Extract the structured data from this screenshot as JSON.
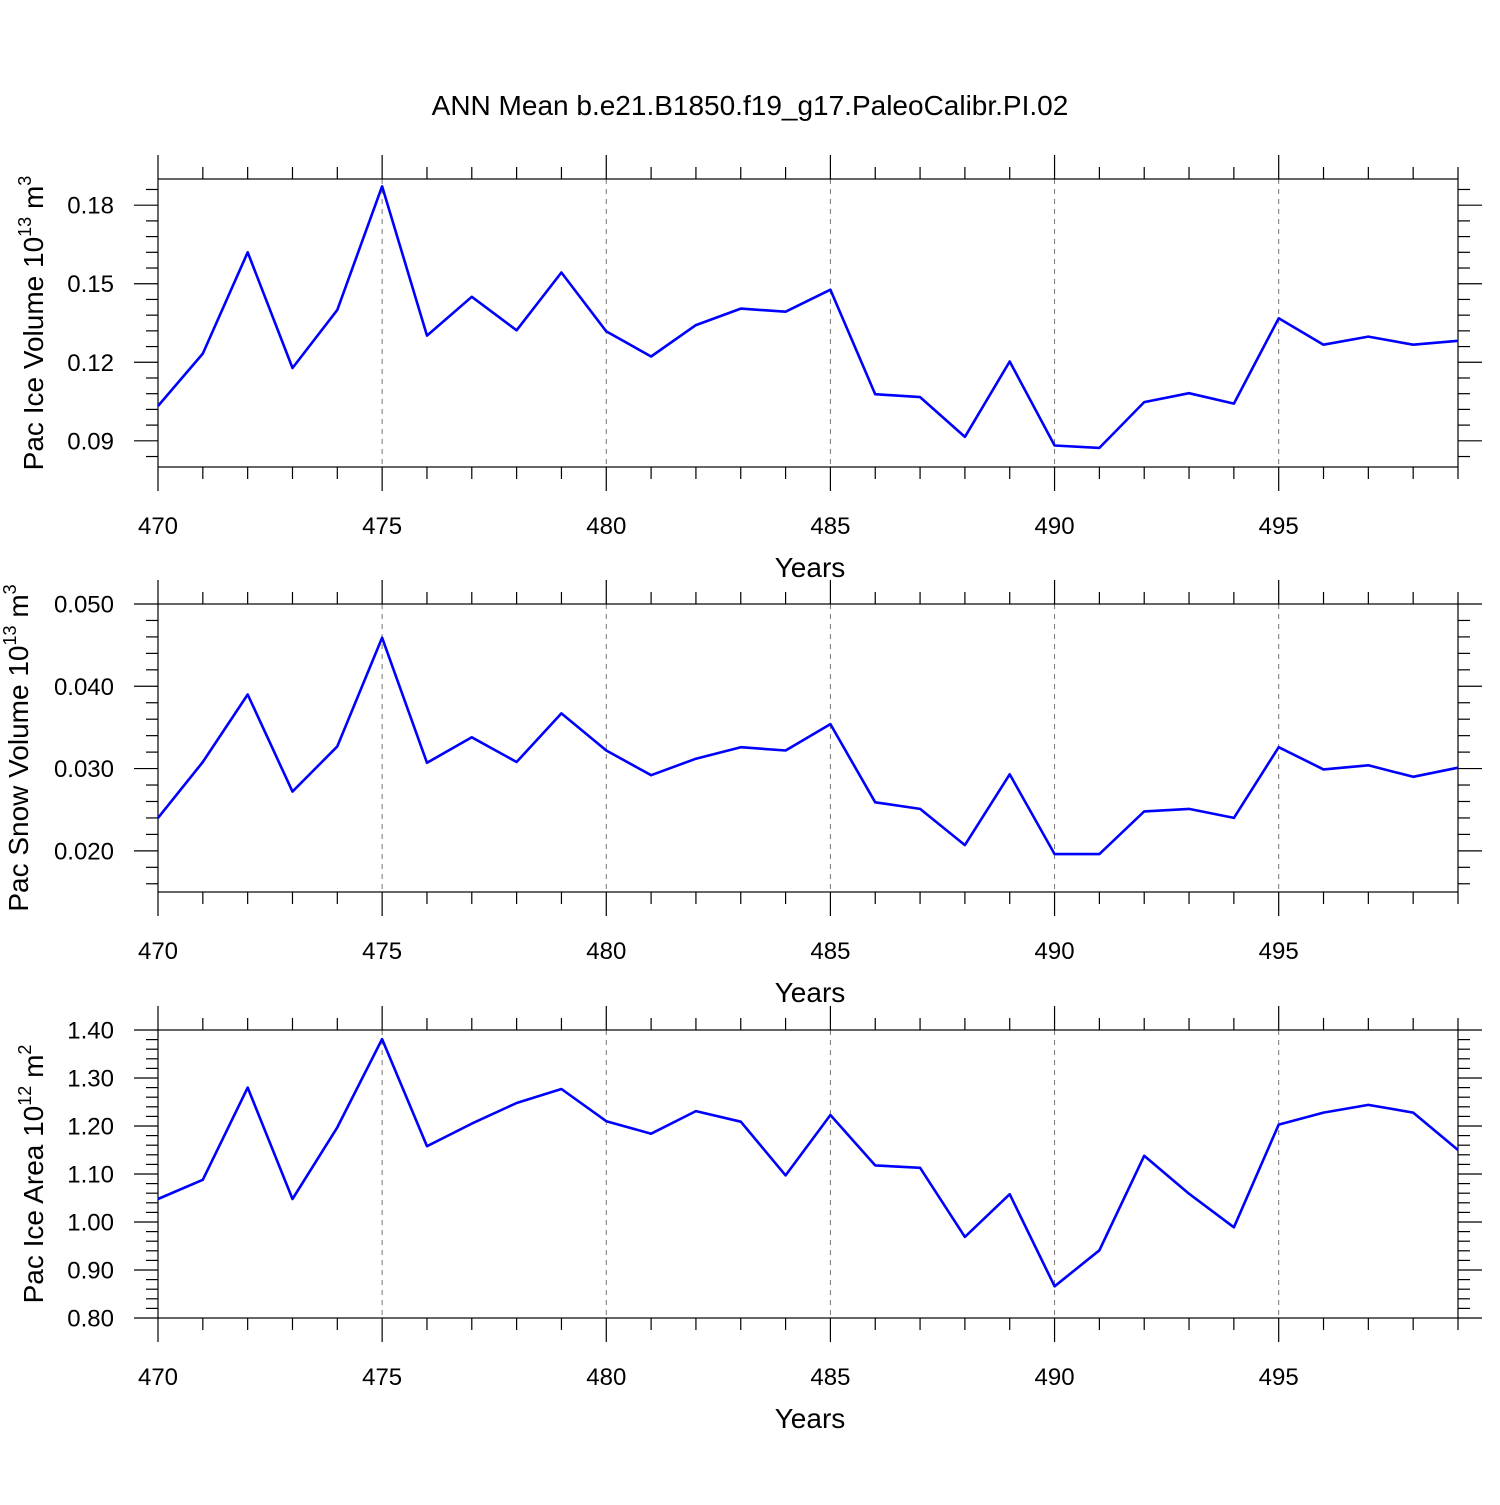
{
  "figure": {
    "title": "ANN Mean b.e21.B1850.f19_g17.PaleoCalibr.PI.02"
  },
  "colors": {
    "series": "#0000ff",
    "grid": "#777777",
    "axis": "#000000"
  },
  "chart_data": [
    {
      "type": "line",
      "xlabel": "Years",
      "ylabel": "Pac Ice Volume",
      "ylabel_unit_base": "10",
      "ylabel_unit_exp": "13",
      "ylabel_unit_m": "m",
      "ylabel_unit_m_exp": "3",
      "xlim": [
        470,
        499
      ],
      "ylim": [
        0.08,
        0.19
      ],
      "xticks": [
        470,
        475,
        480,
        485,
        490,
        495
      ],
      "xtick_labels": [
        "470",
        "475",
        "480",
        "485",
        "490",
        "495"
      ],
      "yticks": [
        0.09,
        0.12,
        0.15,
        0.18
      ],
      "ytick_labels": [
        "0.09",
        "0.12",
        "0.15",
        "0.18"
      ],
      "grid": "vertical dashed at major x ticks",
      "x": [
        470,
        471,
        472,
        473,
        474,
        475,
        476,
        477,
        478,
        479,
        480,
        481,
        482,
        483,
        484,
        485,
        486,
        487,
        488,
        489,
        490,
        491,
        492,
        493,
        494,
        495,
        496,
        497,
        498,
        499
      ],
      "series": [
        {
          "values": [
            0.1033,
            0.1233,
            0.162,
            0.1178,
            0.14,
            0.1872,
            0.1302,
            0.145,
            0.1322,
            0.1543,
            0.1318,
            0.1222,
            0.1342,
            0.1405,
            0.1393,
            0.1477,
            0.1078,
            0.1067,
            0.0915,
            0.1203,
            0.0882,
            0.0873,
            0.1048,
            0.1082,
            0.1042,
            0.1368,
            0.1267,
            0.1298,
            0.1267,
            0.1282
          ]
        }
      ]
    },
    {
      "type": "line",
      "xlabel": "Years",
      "ylabel": "Pac Snow Volume",
      "ylabel_unit_base": "10",
      "ylabel_unit_exp": "13",
      "ylabel_unit_m": "m",
      "ylabel_unit_m_exp": "3",
      "xlim": [
        470,
        499
      ],
      "ylim": [
        0.015,
        0.05
      ],
      "xticks": [
        470,
        475,
        480,
        485,
        490,
        495
      ],
      "xtick_labels": [
        "470",
        "475",
        "480",
        "485",
        "490",
        "495"
      ],
      "yticks": [
        0.02,
        0.03,
        0.04,
        0.05
      ],
      "ytick_labels": [
        "0.020",
        "0.030",
        "0.040",
        "0.050"
      ],
      "grid": "vertical dashed at major x ticks",
      "x": [
        470,
        471,
        472,
        473,
        474,
        475,
        476,
        477,
        478,
        479,
        480,
        481,
        482,
        483,
        484,
        485,
        486,
        487,
        488,
        489,
        490,
        491,
        492,
        493,
        494,
        495,
        496,
        497,
        498,
        499
      ],
      "series": [
        {
          "values": [
            0.024,
            0.0308,
            0.039,
            0.0272,
            0.0327,
            0.0459,
            0.0307,
            0.0338,
            0.0308,
            0.0367,
            0.0322,
            0.0292,
            0.0312,
            0.0326,
            0.0322,
            0.0354,
            0.0259,
            0.0251,
            0.0207,
            0.0293,
            0.0196,
            0.0196,
            0.0248,
            0.0251,
            0.024,
            0.0326,
            0.0299,
            0.0304,
            0.029,
            0.0301
          ]
        }
      ]
    },
    {
      "type": "line",
      "xlabel": "Years",
      "ylabel": "Pac Ice Area",
      "ylabel_unit_base": "10",
      "ylabel_unit_exp": "12",
      "ylabel_unit_m": "m",
      "ylabel_unit_m_exp": "2",
      "xlim": [
        470,
        499
      ],
      "ylim": [
        0.8,
        1.4
      ],
      "xticks": [
        470,
        475,
        480,
        485,
        490,
        495
      ],
      "xtick_labels": [
        "470",
        "475",
        "480",
        "485",
        "490",
        "495"
      ],
      "yticks": [
        0.8,
        0.9,
        1.0,
        1.1,
        1.2,
        1.3,
        1.4
      ],
      "ytick_labels": [
        "0.80",
        "0.90",
        "1.00",
        "1.10",
        "1.20",
        "1.30",
        "1.40"
      ],
      "grid": "vertical dashed at major x ticks",
      "x": [
        470,
        471,
        472,
        473,
        474,
        475,
        476,
        477,
        478,
        479,
        480,
        481,
        482,
        483,
        484,
        485,
        486,
        487,
        488,
        489,
        490,
        491,
        492,
        493,
        494,
        495,
        496,
        497,
        498,
        499
      ],
      "series": [
        {
          "values": [
            1.048,
            1.088,
            1.28,
            1.048,
            1.197,
            1.381,
            1.158,
            1.205,
            1.248,
            1.277,
            1.21,
            1.184,
            1.231,
            1.209,
            1.097,
            1.223,
            1.118,
            1.113,
            0.969,
            1.058,
            0.866,
            0.941,
            1.138,
            1.059,
            0.989,
            1.203,
            1.228,
            1.244,
            1.228,
            1.15
          ]
        }
      ]
    }
  ]
}
